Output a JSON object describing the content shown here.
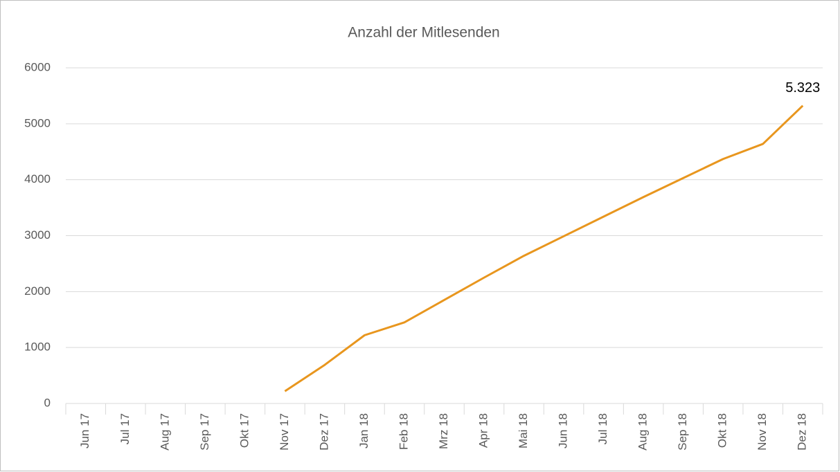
{
  "chart_data": {
    "type": "line",
    "title": "Anzahl der Mitlesenden",
    "categories": [
      "Jun 17",
      "Jul 17",
      "Aug 17",
      "Sep 17",
      "Okt 17",
      "Nov 17",
      "Dez 17",
      "Jan 18",
      "Feb 18",
      "Mrz 18",
      "Apr 18",
      "Mai 18",
      "Jun 18",
      "Jul 18",
      "Aug 18",
      "Sep 18",
      "Okt 18",
      "Nov 18",
      "Dez 18"
    ],
    "series": [
      {
        "name": "Mitlesende",
        "color": "#e8961e",
        "values": [
          null,
          null,
          null,
          null,
          null,
          220,
          690,
          1220,
          1450,
          1850,
          2250,
          2640,
          2990,
          3340,
          3690,
          4030,
          4370,
          4640,
          5323
        ],
        "value_labels": [
          null,
          null,
          null,
          null,
          null,
          null,
          null,
          null,
          null,
          null,
          null,
          null,
          null,
          null,
          null,
          null,
          null,
          null,
          "5.323"
        ]
      }
    ],
    "ylim": [
      0,
      6000
    ],
    "yticks": [
      0,
      1000,
      2000,
      3000,
      4000,
      5000,
      6000
    ],
    "grid": true
  }
}
